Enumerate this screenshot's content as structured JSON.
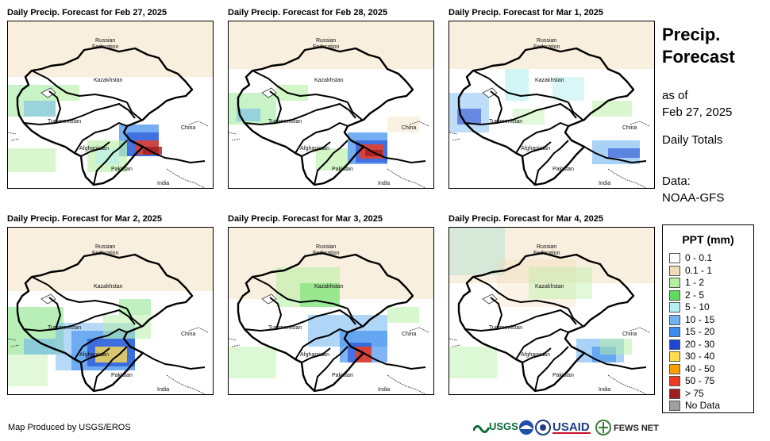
{
  "panels": [
    {
      "title": "Daily Precip. Forecast for Feb 27, 2025"
    },
    {
      "title": "Daily Precip. Forecast for Feb 28, 2025"
    },
    {
      "title": "Daily Precip. Forecast for Mar 1, 2025"
    },
    {
      "title": "Daily Precip. Forecast for Mar 2, 2025"
    },
    {
      "title": "Daily Precip. Forecast for Mar 3, 2025"
    },
    {
      "title": "Daily Precip. Forecast for Mar 4, 2025"
    }
  ],
  "map_labels": {
    "russia_line1": "Russian",
    "russia_line2": "Federation",
    "kazakhstan": "Kazakhstan",
    "turkmenistan": "Turkmenistan",
    "afghanistan": "Afghanistan",
    "pakistan": "Pakistan",
    "china": "China",
    "india": "India"
  },
  "sidebar": {
    "title_line1": "Precip.",
    "title_line2": "Forecast",
    "asof_line1": "as of",
    "asof_line2": "Feb 27, 2025",
    "daily_totals": "Daily Totals",
    "data_line1": "Data:",
    "data_line2": "NOAA-GFS"
  },
  "legend": {
    "title": "PPT (mm)",
    "items": [
      {
        "label": "0 - 0.1",
        "color": "#ffffff"
      },
      {
        "label": "0.1 - 1",
        "color": "#f2dcb6"
      },
      {
        "label": "1 - 2",
        "color": "#b4f0a0"
      },
      {
        "label": "2 - 5",
        "color": "#5fdc5f"
      },
      {
        "label": "5 - 10",
        "color": "#b4f0f0"
      },
      {
        "label": "10 - 15",
        "color": "#6eb4f0"
      },
      {
        "label": "15 - 20",
        "color": "#3c8cf0"
      },
      {
        "label": "20 - 30",
        "color": "#1e46d2"
      },
      {
        "label": "30 - 40",
        "color": "#ffdc50"
      },
      {
        "label": "40 - 50",
        "color": "#ffa000"
      },
      {
        "label": "50 - 75",
        "color": "#f03c1e"
      },
      {
        "label": "> 75",
        "color": "#a01e1e"
      },
      {
        "label": "No Data",
        "color": "#a0a0a0"
      }
    ]
  },
  "footer": {
    "credit": "Map Produced by USGS/EROS"
  },
  "logos": {
    "usgs": "USGS",
    "usaid": "USAID",
    "fewsnet": "FEWS NET"
  }
}
